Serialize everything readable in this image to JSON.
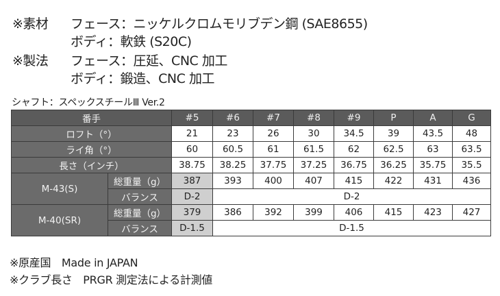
{
  "specs": [
    {
      "label": "※素材",
      "lines": [
        "フェース：ニッケルクロムモリブデン鋼 (SAE8655)",
        "ボディ：軟鉄 (S20C)"
      ]
    },
    {
      "label": "※製法",
      "lines": [
        "フェース：圧延、CNC 加工",
        "ボディ：鍛造、CNC 加工"
      ]
    }
  ],
  "shaft_caption": "シャフト：スペックスチールⅢ Ver.2",
  "table": {
    "header_label": "番手",
    "clubs": [
      "#5",
      "#6",
      "#7",
      "#8",
      "#9",
      "P",
      "A",
      "G"
    ],
    "rows": [
      {
        "label": "ロフト（°）",
        "values": [
          "21",
          "23",
          "26",
          "30",
          "34.5",
          "39",
          "43.5",
          "48"
        ]
      },
      {
        "label": "ライ角（°）",
        "values": [
          "60",
          "60.5",
          "61",
          "61.5",
          "62",
          "62.5",
          "63",
          "63.5"
        ]
      },
      {
        "label": "長さ（インチ）",
        "values": [
          "38.75",
          "38.25",
          "37.75",
          "37.25",
          "36.75",
          "36.25",
          "35.75",
          "35.5"
        ]
      }
    ],
    "shafts": [
      {
        "name": "M-43(S)",
        "weight_label": "総重量（g）",
        "weights": [
          "387",
          "393",
          "400",
          "407",
          "415",
          "422",
          "431",
          "436"
        ],
        "balance_label": "バランス",
        "balance_first": "D-2",
        "balance_rest": "D-2"
      },
      {
        "name": "M-40(SR)",
        "weight_label": "総重量（g）",
        "weights": [
          "379",
          "386",
          "392",
          "399",
          "406",
          "415",
          "423",
          "427"
        ],
        "balance_label": "バランス",
        "balance_first": "D-1.5",
        "balance_rest": "D-1.5"
      }
    ]
  },
  "footnotes": [
    "※原産国　Made in JAPAN",
    "※クラブ長さ　PRGR 測定法による計測値"
  ],
  "colors": {
    "header_bg": "#5b5b5b",
    "label_bg": "#6b6b6b",
    "highlight_bg": "#cfcfcf"
  }
}
